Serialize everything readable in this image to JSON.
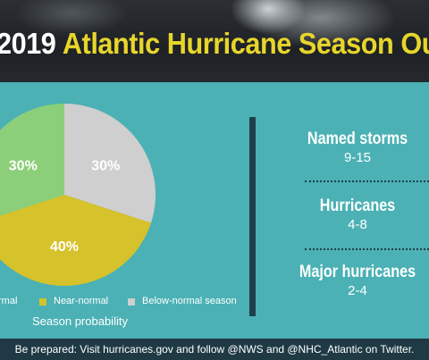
{
  "header": {
    "year": "2019",
    "title": "Atlantic Hurricane Season Outlo"
  },
  "chart_data": {
    "type": "pie",
    "slices": [
      {
        "label": "Above-normal",
        "value": 30,
        "display": "30%",
        "color": "#8ccf7a"
      },
      {
        "label": "Near-normal",
        "value": 40,
        "display": "40%",
        "color": "#d6c22a"
      },
      {
        "label": "Below-normal season",
        "value": 30,
        "display": "30%",
        "color": "#cfcfcf"
      }
    ],
    "legend_visible": [
      "rmal",
      "Near-normal",
      "Below-normal season"
    ],
    "caption": "Season probability",
    "legend_position": "bottom"
  },
  "stats": [
    {
      "label": "Named storms",
      "value": "9-15"
    },
    {
      "label": "Hurricanes",
      "value": "4-8"
    },
    {
      "label": "Major hurricanes",
      "value": "2-4"
    }
  ],
  "footer": {
    "text": "Be prepared: Visit hurricanes.gov and follow @NWS and @NHC_Atlantic on Twitter."
  }
}
